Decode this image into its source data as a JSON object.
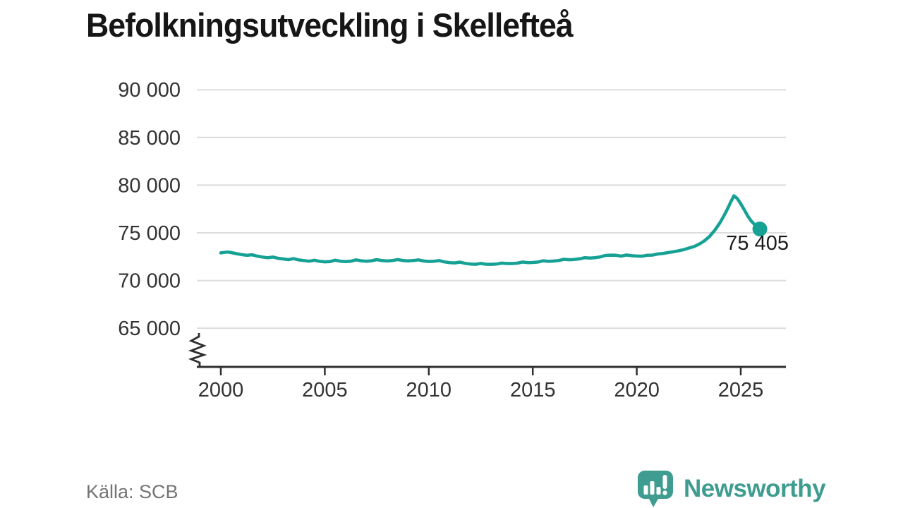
{
  "title": "Befolkningsutveckling i Skellefteå",
  "source": "Källa: SCB",
  "brand": {
    "name": "Newsworthy",
    "color": "#3f9c90",
    "icon": "newsworthy-speech-bubble-chart-icon"
  },
  "chart_data": {
    "type": "line",
    "title": "Befolkningsutveckling i Skellefteå",
    "xlabel": "",
    "ylabel": "",
    "grid": "horizontal",
    "legend": "none",
    "axis_break_bottom_left": true,
    "line_color": "#16a195",
    "grid_color": "#dcdcdc",
    "axis_color": "#2e2e2e",
    "tick_label_color": "#333333",
    "end_label_color": "#1a1a1a",
    "xlim": [
      1998.9,
      2027.2
    ],
    "ylim": [
      62500,
      91500
    ],
    "x_ticks": [
      2000,
      2005,
      2010,
      2015,
      2020,
      2025
    ],
    "y_ticks": [
      {
        "value": 90000,
        "label": "90 000"
      },
      {
        "value": 85000,
        "label": "85 000"
      },
      {
        "value": 80000,
        "label": "80 000"
      },
      {
        "value": 75000,
        "label": "75 000"
      },
      {
        "value": 70000,
        "label": "70 000"
      },
      {
        "value": 65000,
        "label": "65 000"
      }
    ],
    "end_point": {
      "x": 2025.92,
      "value": 75405,
      "label": "75 405"
    },
    "series": [
      {
        "name": "Befolkning i Skellefteå",
        "points": [
          [
            2000.0,
            72900
          ],
          [
            2000.17,
            72950
          ],
          [
            2000.33,
            72990
          ],
          [
            2000.5,
            72930
          ],
          [
            2000.75,
            72820
          ],
          [
            2001.0,
            72720
          ],
          [
            2001.25,
            72640
          ],
          [
            2001.5,
            72700
          ],
          [
            2001.75,
            72560
          ],
          [
            2002.0,
            72460
          ],
          [
            2002.25,
            72390
          ],
          [
            2002.5,
            72460
          ],
          [
            2002.75,
            72330
          ],
          [
            2003.0,
            72260
          ],
          [
            2003.25,
            72190
          ],
          [
            2003.5,
            72290
          ],
          [
            2003.75,
            72160
          ],
          [
            2004.0,
            72090
          ],
          [
            2004.25,
            72030
          ],
          [
            2004.5,
            72130
          ],
          [
            2004.75,
            72010
          ],
          [
            2005.0,
            71960
          ],
          [
            2005.25,
            71990
          ],
          [
            2005.5,
            72130
          ],
          [
            2005.75,
            72030
          ],
          [
            2006.0,
            71990
          ],
          [
            2006.25,
            72030
          ],
          [
            2006.5,
            72170
          ],
          [
            2006.75,
            72070
          ],
          [
            2007.0,
            72030
          ],
          [
            2007.25,
            72070
          ],
          [
            2007.5,
            72190
          ],
          [
            2007.75,
            72090
          ],
          [
            2008.0,
            72050
          ],
          [
            2008.25,
            72090
          ],
          [
            2008.5,
            72200
          ],
          [
            2008.75,
            72100
          ],
          [
            2009.0,
            72060
          ],
          [
            2009.25,
            72090
          ],
          [
            2009.5,
            72170
          ],
          [
            2009.75,
            72050
          ],
          [
            2010.0,
            72000
          ],
          [
            2010.25,
            72020
          ],
          [
            2010.5,
            72090
          ],
          [
            2010.75,
            71950
          ],
          [
            2011.0,
            71880
          ],
          [
            2011.25,
            71850
          ],
          [
            2011.5,
            71930
          ],
          [
            2011.75,
            71800
          ],
          [
            2012.0,
            71730
          ],
          [
            2012.25,
            71700
          ],
          [
            2012.5,
            71790
          ],
          [
            2012.75,
            71710
          ],
          [
            2013.0,
            71700
          ],
          [
            2013.25,
            71720
          ],
          [
            2013.5,
            71830
          ],
          [
            2013.75,
            71780
          ],
          [
            2014.0,
            71780
          ],
          [
            2014.25,
            71820
          ],
          [
            2014.5,
            71940
          ],
          [
            2014.75,
            71880
          ],
          [
            2015.0,
            71890
          ],
          [
            2015.25,
            71940
          ],
          [
            2015.5,
            72070
          ],
          [
            2015.75,
            72010
          ],
          [
            2016.0,
            72040
          ],
          [
            2016.25,
            72100
          ],
          [
            2016.5,
            72230
          ],
          [
            2016.75,
            72180
          ],
          [
            2017.0,
            72210
          ],
          [
            2017.25,
            72270
          ],
          [
            2017.5,
            72400
          ],
          [
            2017.75,
            72350
          ],
          [
            2018.0,
            72400
          ],
          [
            2018.25,
            72480
          ],
          [
            2018.5,
            72630
          ],
          [
            2018.75,
            72660
          ],
          [
            2019.0,
            72650
          ],
          [
            2019.25,
            72560
          ],
          [
            2019.5,
            72680
          ],
          [
            2019.75,
            72600
          ],
          [
            2020.0,
            72570
          ],
          [
            2020.25,
            72550
          ],
          [
            2020.5,
            72650
          ],
          [
            2020.75,
            72660
          ],
          [
            2021.0,
            72780
          ],
          [
            2021.25,
            72830
          ],
          [
            2021.5,
            72930
          ],
          [
            2021.75,
            73010
          ],
          [
            2022.0,
            73120
          ],
          [
            2022.25,
            73230
          ],
          [
            2022.5,
            73400
          ],
          [
            2022.75,
            73560
          ],
          [
            2023.0,
            73810
          ],
          [
            2023.25,
            74160
          ],
          [
            2023.5,
            74620
          ],
          [
            2023.75,
            75260
          ],
          [
            2024.0,
            76050
          ],
          [
            2024.17,
            76700
          ],
          [
            2024.33,
            77350
          ],
          [
            2024.5,
            78150
          ],
          [
            2024.67,
            78880
          ],
          [
            2024.83,
            78600
          ],
          [
            2025.0,
            78050
          ],
          [
            2025.17,
            77420
          ],
          [
            2025.33,
            76800
          ],
          [
            2025.5,
            76250
          ],
          [
            2025.67,
            75850
          ],
          [
            2025.83,
            75530
          ],
          [
            2025.92,
            75405
          ]
        ]
      }
    ]
  }
}
